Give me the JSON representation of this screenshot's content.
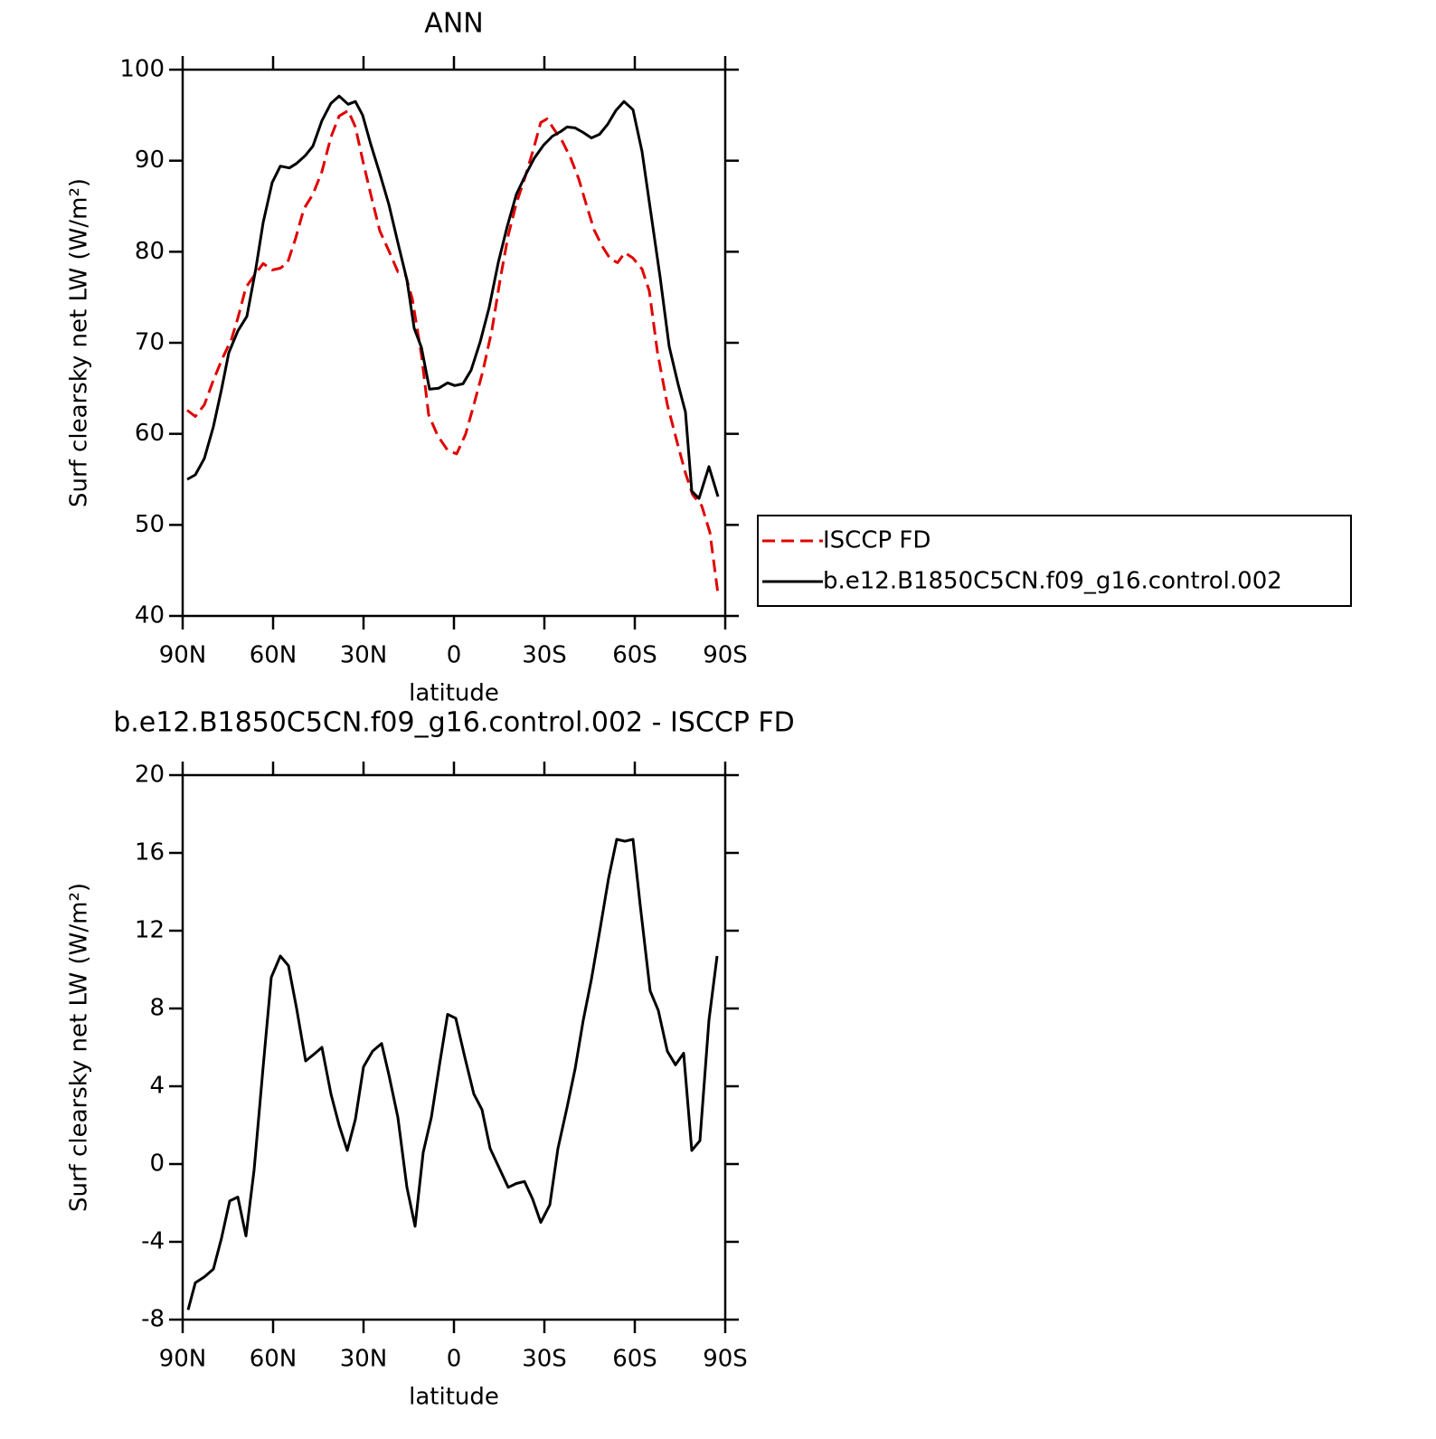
{
  "chart_data": [
    {
      "type": "line",
      "title": "ANN",
      "x_label": "latitude",
      "y_label": "Surf clearsky net LW (W/m²)",
      "xlim": [
        90,
        -90
      ],
      "xticks": [
        {
          "value": 90,
          "label": "90N"
        },
        {
          "value": 60,
          "label": "60N"
        },
        {
          "value": 30,
          "label": "30N"
        },
        0,
        {
          "value": -30,
          "label": "30S"
        },
        {
          "value": -60,
          "label": "60S"
        },
        {
          "value": -90,
          "label": "90S"
        }
      ],
      "ylim": [
        40,
        100
      ],
      "yticks": [
        40,
        50,
        60,
        70,
        80,
        90,
        100
      ],
      "grid": false,
      "legend": "right",
      "series": [
        {
          "name": "ISCCP FD",
          "color": "#e00000",
          "line_style": "dashed",
          "x": [
            88.5,
            85.8,
            82.8,
            79.8,
            76.8,
            73.8,
            71.7,
            69.0,
            66.0,
            63.3,
            60.3,
            57.6,
            55.2,
            52.5,
            49.8,
            46.8,
            43.8,
            40.8,
            38.1,
            35.1,
            32.7,
            30.3,
            27.6,
            24.6,
            21.6,
            18.6,
            16.2,
            13.8,
            10.8,
            8.4,
            5.4,
            2.1,
            -0.9,
            -3.9,
            -6.6,
            -9.6,
            -12.6,
            -15.3,
            -18.0,
            -20.7,
            -23.7,
            -26.4,
            -28.8,
            -30.9,
            -33.3,
            -36.0,
            -38.7,
            -41.4,
            -43.8,
            -46.5,
            -49.2,
            -51.9,
            -54.3,
            -56.7,
            -59.4,
            -62.4,
            -64.8,
            -67.5,
            -70.8,
            -74.1,
            -76.8,
            -79.2,
            -82.2,
            -84.9,
            -87.6
          ],
          "values": [
            62.6,
            61.9,
            63.2,
            65.9,
            68.3,
            70.4,
            72.7,
            76.1,
            77.5,
            78.7,
            78.0,
            78.2,
            78.8,
            81.5,
            84.7,
            86.3,
            88.8,
            92.6,
            94.9,
            95.5,
            93.7,
            90.1,
            86.3,
            82.3,
            80.1,
            77.8,
            77.6,
            74.8,
            68.7,
            62.1,
            59.8,
            58.2,
            57.8,
            60.0,
            63.2,
            66.9,
            71.4,
            76.9,
            81.8,
            85.3,
            88.3,
            91.3,
            94.2,
            94.6,
            93.4,
            92.1,
            90.3,
            88.0,
            85.3,
            82.4,
            80.6,
            79.2,
            78.8,
            79.9,
            79.3,
            78.1,
            75.7,
            69.0,
            63.2,
            59.0,
            55.7,
            53.3,
            52.1,
            49.2,
            42.4
          ]
        },
        {
          "name": "b.e12.B1850C5CN.f09_g16.control.002",
          "color": "#000000",
          "line_style": "solid",
          "x": [
            88.5,
            85.8,
            82.8,
            79.8,
            77.1,
            74.7,
            71.7,
            68.7,
            65.7,
            63.3,
            60.3,
            57.6,
            54.6,
            52.2,
            49.2,
            46.8,
            43.8,
            40.8,
            38.1,
            35.1,
            32.7,
            30.3,
            27.6,
            24.6,
            21.6,
            18.6,
            15.6,
            13.2,
            10.8,
            8.1,
            5.1,
            2.1,
            -0.3,
            -3.0,
            -5.7,
            -8.7,
            -11.7,
            -14.7,
            -17.7,
            -20.7,
            -24.0,
            -26.7,
            -29.7,
            -32.7,
            -35.4,
            -37.5,
            -40.2,
            -42.9,
            -45.6,
            -48.3,
            -51.0,
            -53.7,
            -56.4,
            -59.4,
            -62.4,
            -65.4,
            -68.4,
            -71.4,
            -74.4,
            -76.8,
            -78.9,
            -81.3,
            -84.6,
            -87.6
          ],
          "values": [
            55.0,
            55.5,
            57.3,
            60.8,
            64.9,
            68.9,
            71.3,
            72.9,
            78.2,
            83.2,
            87.6,
            89.4,
            89.2,
            89.7,
            90.6,
            91.6,
            94.4,
            96.3,
            97.1,
            96.2,
            96.5,
            95.0,
            91.8,
            88.6,
            85.2,
            81.0,
            76.9,
            71.6,
            69.5,
            64.9,
            65.0,
            65.6,
            65.3,
            65.5,
            67.0,
            70.1,
            73.9,
            78.8,
            82.8,
            86.3,
            88.6,
            90.3,
            91.7,
            92.7,
            93.2,
            93.7,
            93.6,
            93.1,
            92.5,
            92.9,
            94.0,
            95.5,
            96.5,
            95.6,
            91.0,
            84.1,
            77.2,
            69.6,
            65.4,
            62.4,
            53.7,
            52.9,
            56.4,
            53.1
          ]
        }
      ]
    },
    {
      "type": "line",
      "title": "b.e12.B1850C5CN.f09_g16.control.002 - ISCCP FD",
      "x_label": "latitude",
      "y_label": "Surf clearsky net LW (W/m²)",
      "xlim": [
        90,
        -90
      ],
      "xticks": [
        {
          "value": 90,
          "label": "90N"
        },
        {
          "value": 60,
          "label": "60N"
        },
        {
          "value": 30,
          "label": "30N"
        },
        0,
        {
          "value": -30,
          "label": "30S"
        },
        {
          "value": -60,
          "label": "60S"
        },
        {
          "value": -90,
          "label": "90S"
        }
      ],
      "ylim": [
        -8,
        20
      ],
      "yticks": [
        -8,
        -4,
        0,
        4,
        8,
        12,
        16,
        20
      ],
      "grid": false,
      "series": [
        {
          "color": "#000000",
          "line_style": "solid",
          "x": [
            88.2,
            85.8,
            82.8,
            79.8,
            77.1,
            74.4,
            71.7,
            69.0,
            66.3,
            63.3,
            60.6,
            57.6,
            54.9,
            52.2,
            49.2,
            46.8,
            43.8,
            40.8,
            38.1,
            35.4,
            32.7,
            30.0,
            27.0,
            24.0,
            21.6,
            18.6,
            15.6,
            12.9,
            10.2,
            7.5,
            4.8,
            2.1,
            -0.6,
            -3.6,
            -6.6,
            -9.3,
            -12.0,
            -15.0,
            -18.0,
            -20.7,
            -23.4,
            -26.1,
            -28.8,
            -31.8,
            -34.5,
            -37.5,
            -40.2,
            -42.9,
            -45.6,
            -48.6,
            -51.3,
            -54.0,
            -56.7,
            -59.4,
            -61.8,
            -65.1,
            -67.8,
            -70.8,
            -73.5,
            -76.2,
            -78.9,
            -81.6,
            -84.6,
            -87.3
          ],
          "values": [
            -7.5,
            -6.1,
            -5.8,
            -5.4,
            -3.8,
            -1.9,
            -1.7,
            -3.7,
            -0.3,
            5.0,
            9.6,
            10.7,
            10.2,
            8.0,
            5.3,
            5.6,
            6.0,
            3.6,
            2.0,
            0.7,
            2.3,
            5.0,
            5.8,
            6.2,
            4.6,
            2.4,
            -1.2,
            -3.2,
            0.6,
            2.4,
            5.1,
            7.7,
            7.5,
            5.5,
            3.6,
            2.8,
            0.8,
            -0.2,
            -1.2,
            -1.0,
            -0.9,
            -1.8,
            -3.0,
            -2.1,
            0.8,
            2.9,
            4.9,
            7.4,
            9.5,
            12.2,
            14.7,
            16.7,
            16.6,
            16.7,
            13.3,
            8.9,
            7.9,
            5.8,
            5.1,
            5.7,
            0.7,
            1.2,
            7.4,
            10.7
          ]
        }
      ]
    }
  ]
}
